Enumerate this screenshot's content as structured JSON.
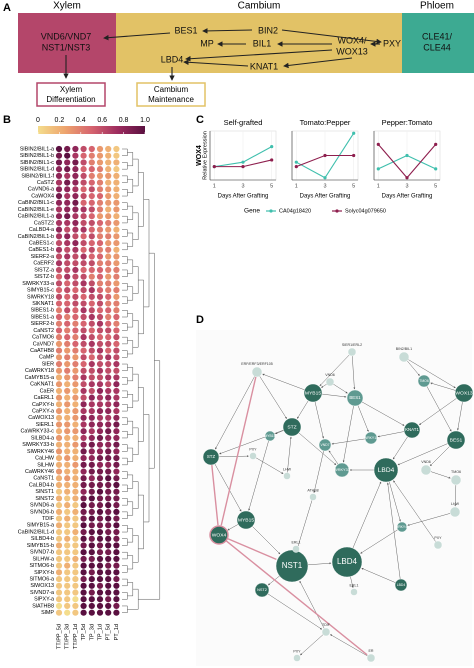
{
  "panel_labels": [
    "A",
    "B",
    "C",
    "D"
  ],
  "diagram": {
    "zones": [
      "Xylem",
      "Cambium",
      "Phloem"
    ],
    "labels": [
      [
        "VND6/VND7",
        "NST1/NST3"
      ],
      [
        "BES1"
      ],
      [
        "BIN2"
      ],
      [
        "MP"
      ],
      [
        "BIL1"
      ],
      [
        "WOX4/",
        "WOX13"
      ],
      [
        "PXY"
      ],
      [
        "LBD4"
      ],
      [
        "KNAT1"
      ],
      [
        "CLE41/",
        "CLE44"
      ]
    ],
    "outcomes": [
      [
        "Xylem",
        "Differentiation"
      ],
      [
        "Cambium",
        "Maintenance"
      ]
    ]
  },
  "chart_data": [
    {
      "type": "heatmap",
      "clim": [
        0,
        1
      ],
      "cticks": [
        0,
        0.2,
        0.4,
        0.6,
        0.8,
        {
          "value": 1,
          "label": "1.0"
        }
      ],
      "columns": [
        "TT/PP_5d",
        "TT/PP_3d",
        "TT/PP_1d",
        "TP_5d",
        "TP_3d",
        "TP_1d",
        "PT_5d",
        "PT_1d"
      ],
      "rows": [
        "SlBIN2/BIL1-a",
        "SlBIN2/BIL1-b",
        "SlBIN2/BIL1-c",
        "SlBIN2/BIL1-d",
        "SlBIN2/BIL1-f",
        "CaSTZ",
        "CaVND6-a",
        "CaWOX4",
        "CaBIN2/BIL1-c",
        "CaBIN2/BIL1-e",
        "CaBIN2/BIL1-a",
        "CaSTZ2",
        "CaLBD4-a",
        "CaBIN2/BIL1-b",
        "CaBES1-c",
        "CaBES1-b",
        "SlERF2-a",
        "CaERF2",
        "SlSTZ-a",
        "SlSTZ-b",
        "SlWRKY33-a",
        "SlMYB15-c",
        "SlWRKY18",
        "SlKNAT1",
        "SlBES1-b",
        "SlBES1-a",
        "SlERF2-b",
        "CaNST2",
        "CaTMO6",
        "CaVND7",
        "CaATHB8",
        "CaMP",
        "SlER",
        "CaWRKY18",
        "CaMYB15-a",
        "CaKNAT1",
        "CaER",
        "CaERL1",
        "CaPXY-b",
        "CaPXY-a",
        "CaWOX13",
        "SlERL1",
        "CaWRKY33-c",
        "SlLBD4-a",
        "SlWRKY33-b",
        "SlWRKY46",
        "CaLHW",
        "SlLHW",
        "CaWRKY46",
        "CaNST1",
        "CaLBD4-b",
        "SlNST1",
        "SlNST2",
        "SlVND6-a",
        "SlVND6-b",
        "TDIF",
        "SlMYB15-a",
        "CaBIN2/BIL1-d",
        "SlLBD4-b",
        "SlMYB15-b",
        "SlVND7-b",
        "SlLHW-a",
        "SlTMO6-b",
        "SlPXY-b",
        "SlTMO6-a",
        "SlWOX13",
        "SlVND7-a",
        "SlPXY-a",
        "SlATHB8",
        "SlMP"
      ],
      "values": [
        [
          1,
          0.9,
          0.8,
          0.6,
          0.5,
          0.3,
          0.2,
          0.1
        ],
        [
          0.9,
          1,
          0.7,
          0.5,
          0.4,
          0.3,
          0.2,
          0.1
        ],
        [
          0.9,
          0.8,
          0.9,
          0.6,
          0.4,
          0.3,
          0.2,
          0.2
        ],
        [
          0.8,
          0.9,
          0.8,
          0.5,
          0.5,
          0.4,
          0.2,
          0.1
        ],
        [
          0.8,
          0.7,
          0.8,
          0.6,
          0.4,
          0.3,
          0.3,
          0.2
        ],
        [
          0.7,
          0.9,
          0.8,
          0.6,
          0.5,
          0.4,
          0.2,
          0.2
        ],
        [
          0.8,
          0.8,
          0.7,
          0.5,
          0.6,
          0.4,
          0.3,
          0.2
        ],
        [
          0.9,
          0.7,
          0.8,
          0.6,
          0.5,
          0.5,
          0.3,
          0.2
        ],
        [
          0.8,
          0.8,
          0.9,
          0.5,
          0.5,
          0.4,
          0.3,
          0.3
        ],
        [
          0.7,
          0.8,
          0.8,
          0.7,
          0.6,
          0.4,
          0.2,
          0.3
        ],
        [
          0.8,
          0.9,
          0.7,
          0.6,
          0.5,
          0.3,
          0.3,
          0.2
        ],
        [
          0.7,
          0.7,
          0.8,
          0.6,
          0.6,
          0.5,
          0.4,
          0.3
        ],
        [
          0.8,
          0.6,
          0.7,
          0.7,
          0.5,
          0.4,
          0.3,
          0.2
        ],
        [
          0.7,
          0.8,
          0.6,
          0.5,
          0.6,
          0.4,
          0.4,
          0.3
        ],
        [
          0.6,
          0.7,
          0.8,
          0.6,
          0.5,
          0.5,
          0.3,
          0.3
        ],
        [
          0.7,
          0.6,
          0.7,
          0.5,
          0.6,
          0.4,
          0.4,
          0.2
        ],
        [
          0.6,
          0.7,
          0.6,
          0.7,
          0.5,
          0.5,
          0.3,
          0.3
        ],
        [
          0.7,
          0.6,
          0.6,
          0.6,
          0.6,
          0.4,
          0.4,
          0.3
        ],
        [
          0.6,
          0.6,
          0.7,
          0.5,
          0.5,
          0.5,
          0.4,
          0.4
        ],
        [
          0.5,
          0.7,
          0.6,
          0.6,
          0.4,
          0.5,
          0.3,
          0.4
        ],
        [
          0.6,
          0.5,
          0.6,
          0.7,
          0.6,
          0.4,
          0.4,
          0.3
        ],
        [
          0.5,
          0.6,
          0.5,
          0.6,
          0.7,
          0.5,
          0.4,
          0.4
        ],
        [
          0.6,
          0.5,
          0.6,
          0.5,
          0.6,
          0.6,
          0.5,
          0.3
        ],
        [
          0.5,
          0.5,
          0.6,
          0.6,
          0.5,
          0.6,
          0.4,
          0.4
        ],
        [
          0.4,
          0.6,
          0.5,
          0.7,
          0.6,
          0.5,
          0.5,
          0.4
        ],
        [
          0.5,
          0.4,
          0.5,
          0.6,
          0.7,
          0.6,
          0.4,
          0.5
        ],
        [
          0.4,
          0.5,
          0.4,
          0.5,
          0.6,
          0.7,
          0.5,
          0.4
        ],
        [
          0.5,
          0.4,
          0.5,
          0.6,
          0.5,
          0.6,
          0.6,
          0.5
        ],
        [
          0.4,
          0.5,
          0.4,
          0.7,
          0.6,
          0.5,
          0.5,
          0.6
        ],
        [
          0.3,
          0.4,
          0.5,
          0.6,
          0.7,
          0.6,
          0.6,
          0.5
        ],
        [
          0.4,
          0.3,
          0.4,
          0.5,
          0.6,
          0.7,
          0.5,
          0.6
        ],
        [
          0.3,
          0.4,
          0.3,
          0.6,
          0.5,
          0.6,
          0.7,
          0.6
        ],
        [
          0.4,
          0.3,
          0.4,
          0.5,
          0.7,
          0.6,
          0.6,
          0.7
        ],
        [
          0.3,
          0.4,
          0.3,
          0.6,
          0.6,
          0.7,
          0.6,
          0.6
        ],
        [
          0.2,
          0.3,
          0.4,
          0.7,
          0.6,
          0.6,
          0.7,
          0.7
        ],
        [
          0.3,
          0.2,
          0.3,
          0.6,
          0.7,
          0.7,
          0.6,
          0.8
        ],
        [
          0.2,
          0.3,
          0.2,
          0.7,
          0.6,
          0.8,
          0.7,
          0.7
        ],
        [
          0.3,
          0.2,
          0.3,
          0.6,
          0.8,
          0.7,
          0.8,
          0.7
        ],
        [
          0.2,
          0.3,
          0.2,
          0.8,
          0.7,
          0.7,
          0.7,
          0.8
        ],
        [
          0.3,
          0.2,
          0.3,
          0.7,
          0.7,
          0.8,
          0.8,
          0.7
        ],
        [
          0.2,
          0.2,
          0.3,
          0.8,
          0.8,
          0.7,
          0.7,
          0.8
        ],
        [
          0.3,
          0.3,
          0.2,
          0.7,
          0.8,
          0.8,
          0.8,
          0.9
        ],
        [
          0.2,
          0.3,
          0.3,
          0.8,
          0.7,
          0.8,
          0.9,
          0.8
        ],
        [
          0.3,
          0.2,
          0.2,
          0.7,
          0.8,
          0.9,
          0.8,
          0.8
        ],
        [
          0.2,
          0.2,
          0.3,
          0.8,
          0.9,
          0.8,
          0.8,
          0.9
        ],
        [
          0.3,
          0.2,
          0.2,
          0.9,
          0.8,
          0.8,
          0.9,
          0.8
        ],
        [
          0.2,
          0.3,
          0.2,
          0.8,
          0.8,
          0.9,
          0.9,
          0.9
        ],
        [
          0.2,
          0.2,
          0.3,
          0.9,
          0.9,
          0.8,
          0.8,
          0.9
        ],
        [
          0.3,
          0.2,
          0.2,
          0.8,
          0.9,
          0.9,
          0.9,
          0.8
        ],
        [
          0.2,
          0.3,
          0.2,
          0.9,
          0.8,
          0.9,
          1,
          0.9
        ],
        [
          0.2,
          0.2,
          0.2,
          0.9,
          0.9,
          0.9,
          0.9,
          1
        ],
        [
          0.1,
          0.2,
          0.2,
          0.8,
          0.9,
          1,
          0.9,
          0.9
        ],
        [
          0.2,
          0.1,
          0.2,
          0.9,
          1,
          0.9,
          0.9,
          0.9
        ],
        [
          0.1,
          0.2,
          0.1,
          1,
          0.9,
          0.9,
          1,
          0.9
        ],
        [
          0.2,
          0.1,
          0.2,
          0.9,
          0.9,
          1,
          0.9,
          1
        ],
        [
          0.1,
          0.2,
          0.1,
          0.9,
          1,
          0.9,
          1,
          0.9
        ],
        [
          0.2,
          0.1,
          0.1,
          1,
          0.9,
          0.9,
          0.9,
          1
        ],
        [
          0.1,
          0.1,
          0.2,
          0.9,
          1,
          1,
          0.9,
          0.9
        ],
        [
          0.1,
          0.2,
          0.1,
          1,
          0.9,
          1,
          1,
          0.9
        ],
        [
          0.2,
          0.1,
          0.1,
          0.9,
          1,
          0.9,
          1,
          1
        ],
        [
          0.1,
          0.1,
          0.1,
          1,
          1,
          0.9,
          0.9,
          1
        ],
        [
          0.1,
          0.1,
          0.2,
          0.9,
          0.9,
          1,
          1,
          1
        ],
        [
          0.1,
          0.2,
          0.1,
          1,
          1,
          1,
          0.9,
          0.9
        ],
        [
          0.2,
          0.1,
          0.1,
          1,
          0.9,
          1,
          1,
          1
        ],
        [
          0.1,
          0.1,
          0.1,
          0.9,
          1,
          1,
          1,
          0.9
        ],
        [
          0.1,
          0.1,
          0.1,
          1,
          1,
          0.9,
          1,
          1
        ],
        [
          0.1,
          0.1,
          0.1,
          1,
          0.9,
          1,
          1,
          1
        ],
        [
          0.1,
          0.1,
          0,
          1,
          1,
          1,
          0.9,
          1
        ],
        [
          0,
          0.1,
          0.1,
          1,
          1,
          1,
          1,
          0.9
        ],
        [
          0.1,
          0,
          0.1,
          1,
          1,
          1,
          1,
          1
        ]
      ]
    },
    {
      "type": "line",
      "title": "Self-grafted",
      "gene": "WOX4",
      "ylabel": "Relative Expression",
      "xlabel": "Days After Grafting",
      "legend_title": "Gene",
      "x": [
        1,
        3,
        5
      ],
      "xlim": [
        0.7,
        5.3
      ],
      "xticks": [
        1,
        3,
        5
      ],
      "ylim": [
        -0.05,
        1.05
      ],
      "series": [
        {
          "name": "CA04g18420",
          "color": "#3fbfad",
          "values": [
            0.25,
            0.35,
            0.7
          ]
        },
        {
          "name": "Solyc04g079650",
          "color": "#8e1f4e",
          "values": [
            0.25,
            0.25,
            0.4
          ]
        }
      ]
    },
    {
      "type": "line",
      "title": "Tomato:Pepper",
      "xlabel": "Days After Grafting",
      "x": [
        1,
        3,
        5
      ],
      "xlim": [
        0.7,
        5.3
      ],
      "xticks": [
        1,
        3,
        5
      ],
      "ylim": [
        -0.05,
        1.05
      ],
      "series": [
        {
          "color": "#3fbfad",
          "values": [
            0.35,
            0,
            1
          ]
        },
        {
          "color": "#8e1f4e",
          "values": [
            0.25,
            0.5,
            0.5
          ]
        }
      ]
    },
    {
      "type": "line",
      "title": "Pepper:Tomato",
      "xlabel": "Days After Grafting",
      "x": [
        1,
        3,
        5
      ],
      "xlim": [
        0.7,
        5.3
      ],
      "xticks": [
        1,
        3,
        5
      ],
      "ylim": [
        -0.05,
        1.05
      ],
      "series": [
        {
          "color": "#3fbfad",
          "values": [
            0.2,
            0.5,
            0.2
          ]
        },
        {
          "color": "#8e1f4e",
          "values": [
            0.75,
            0,
            0.75
          ]
        }
      ]
    }
  ],
  "network": {
    "nodes": [
      "ERF/ERF3/ERF105",
      "MYB15",
      "STZ",
      "STZ",
      "MYB15",
      "WOX4",
      "NST1",
      "LBD4",
      "NST2",
      "BES1",
      "WOX13",
      "KNAT1",
      "TMO6",
      "BES1",
      "LBD4",
      "WRKY33",
      "WRKY18",
      "VND6",
      "VND7",
      "PXY",
      "LHW",
      "ATHB8",
      "MYB15",
      "TMO6",
      "LHW",
      "BIN2/BIL1",
      "SlER1/ERL2",
      "ER",
      "TDIF",
      "PXY",
      "ERL1",
      "WRKY46",
      "LBD4",
      "ERL1",
      "PXY",
      "VND6"
    ]
  }
}
